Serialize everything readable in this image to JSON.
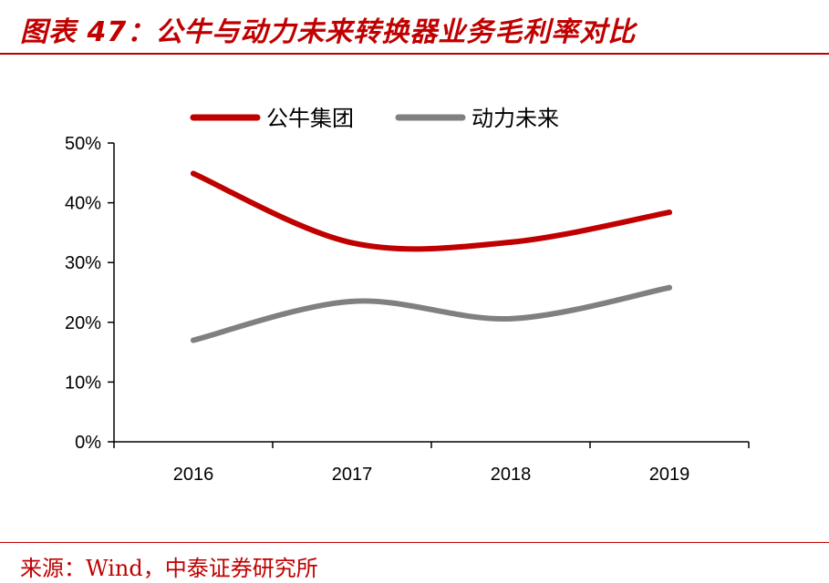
{
  "header": {
    "title": "图表 47：公牛与动力未来转换器业务毛利率对比"
  },
  "footer": {
    "source": "来源：Wind，中泰证券研究所"
  },
  "chart_data": {
    "type": "line",
    "title": "",
    "xlabel": "",
    "ylabel": "",
    "categories": [
      "2016",
      "2017",
      "2018",
      "2019"
    ],
    "ylim": [
      0,
      50
    ],
    "yticks": [
      "0%",
      "10%",
      "20%",
      "30%",
      "40%",
      "50%"
    ],
    "legend_position": "top",
    "grid": false,
    "series": [
      {
        "name": "公牛集团",
        "values": [
          44.9,
          33.3,
          33.4,
          38.4
        ],
        "color": "#c00000"
      },
      {
        "name": "动力未来",
        "values": [
          17.0,
          23.5,
          20.6,
          25.8
        ],
        "color": "#808080"
      }
    ]
  }
}
